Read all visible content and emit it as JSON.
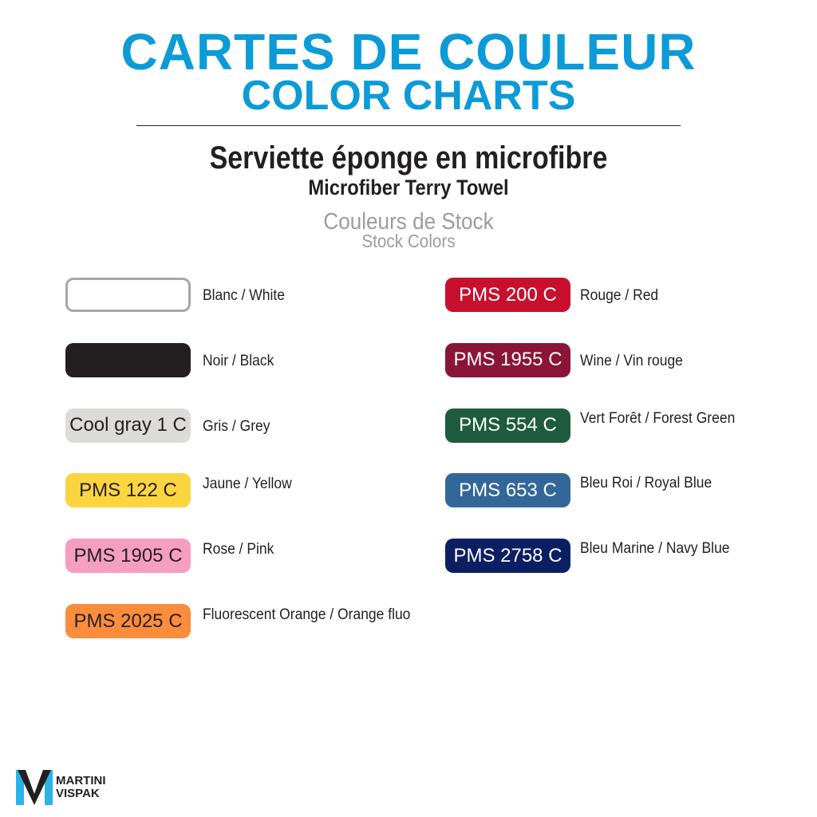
{
  "header": {
    "title_fr": "CARTES DE COULEUR",
    "title_en": "COLOR CHARTS",
    "product_fr": "Serviette éponge en microfibre",
    "product_en": "Microfiber Terry Towel",
    "section_fr": "Couleurs de Stock",
    "section_en": "Stock Colors"
  },
  "left": [
    {
      "code": "",
      "label": "Blanc / White",
      "bg": "#ffffff",
      "fg": "#231f20",
      "border": "#a6a6a6"
    },
    {
      "code": "",
      "label": "Noir / Black",
      "bg": "#231f20",
      "fg": "#ffffff"
    },
    {
      "code": "Cool gray 1 C",
      "label": "Gris / Grey",
      "bg": "#dcdbd9",
      "fg": "#231f20"
    },
    {
      "code": "PMS 122 C",
      "label": "Jaune / Yellow",
      "bg": "#fcd440",
      "fg": "#231f20"
    },
    {
      "code": "PMS 1905 C",
      "label": "Rose / Pink",
      "bg": "#f59ec0",
      "fg": "#231f20"
    },
    {
      "code": "PMS 2025 C",
      "label": "Fluorescent Orange / Orange fluo",
      "bg": "#fd8d3c",
      "fg": "#231f20"
    }
  ],
  "right": [
    {
      "code": "PMS 200 C",
      "label": "Rouge / Red",
      "bg": "#c8102e",
      "fg": "#ffffff"
    },
    {
      "code": "PMS 1955 C",
      "label": "Wine / Vin rouge",
      "bg": "#8a1538",
      "fg": "#ffffff"
    },
    {
      "code": "PMS 554 C",
      "label": "Vert Forêt / Forest Green",
      "bg": "#1f5c3f",
      "fg": "#ffffff"
    },
    {
      "code": "PMS 653 C",
      "label": "Bleu Roi / Royal Blue",
      "bg": "#33679a",
      "fg": "#ffffff"
    },
    {
      "code": "PMS 2758 C",
      "label": "Bleu Marine / Navy Blue",
      "bg": "#0d1f63",
      "fg": "#ffffff"
    }
  ],
  "logo": {
    "line1": "MARTINI",
    "line2": "VISPAK"
  }
}
